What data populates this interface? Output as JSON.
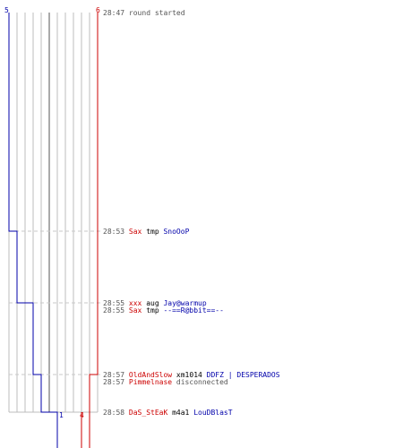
{
  "scores": {
    "blue_top": "5",
    "red_top": "6",
    "blue_bottom": "1",
    "red_bottom": "4"
  },
  "colors": {
    "red_team": "#cc0000",
    "blue_team": "#0000aa",
    "grid_line": "#bdbdbd",
    "grid_highlight": "#555555",
    "dashed_line": "#c8c8c8",
    "timestamp": "#555555"
  },
  "events": [
    {
      "time": "28:47",
      "parts": [
        {
          "text": "round started",
          "color": "gray"
        }
      ]
    },
    {
      "time": "28:53",
      "parts": [
        {
          "text": "Sax",
          "color": "red"
        },
        {
          "text": "tmp",
          "color": "black"
        },
        {
          "text": "SnoOoP",
          "color": "blue"
        }
      ]
    },
    {
      "time": "28:55",
      "parts": [
        {
          "text": "xxx",
          "color": "red"
        },
        {
          "text": "aug",
          "color": "black"
        },
        {
          "text": "Jay@warmup",
          "color": "blue"
        }
      ]
    },
    {
      "time": "28:55",
      "parts": [
        {
          "text": "Sax",
          "color": "red"
        },
        {
          "text": "tmp",
          "color": "black"
        },
        {
          "text": "--==R@bbit==--",
          "color": "blue"
        }
      ]
    },
    {
      "time": "28:57",
      "parts": [
        {
          "text": "OldAndSlow",
          "color": "red"
        },
        {
          "text": "xm1014",
          "color": "black"
        },
        {
          "text": "DDFZ | DESPERADOS",
          "color": "blue"
        }
      ]
    },
    {
      "time": "28:57",
      "parts": [
        {
          "text": "Pimmelnase",
          "color": "red"
        },
        {
          "text": "disconnected",
          "color": "gray"
        }
      ]
    },
    {
      "time": "28:58",
      "parts": [
        {
          "text": "DaS_StEaK",
          "color": "red"
        },
        {
          "text": "m4a1",
          "color": "black"
        },
        {
          "text": "LouDBlasT",
          "color": "blue"
        }
      ]
    }
  ]
}
